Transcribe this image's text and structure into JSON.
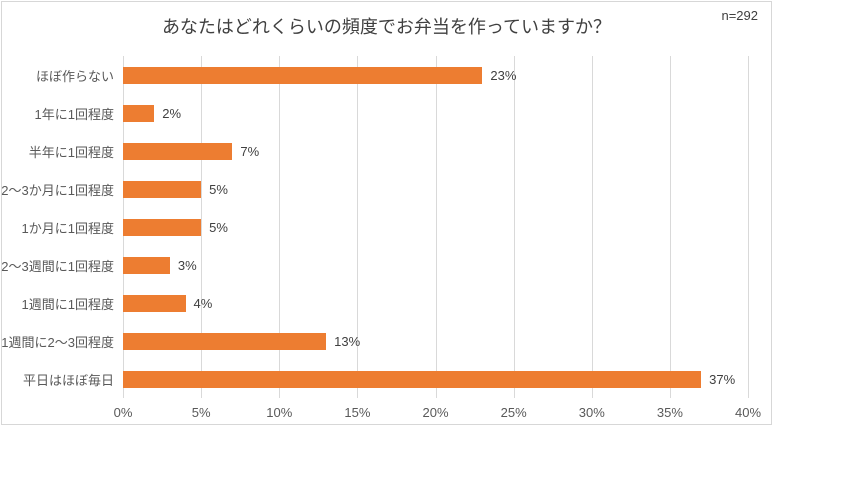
{
  "chart_data": {
    "type": "bar",
    "orientation": "horizontal",
    "title": "あなたはどれくらいの頻度でお弁当を作っていますか？",
    "sample_size": "n=292",
    "categories": [
      "ほぼ作らない",
      "1年に1回程度",
      "半年に1回程度",
      "2～3か月に1回程度",
      "1か月に1回程度",
      "2～3週間に1回程度",
      "1週間に1回程度",
      "1週間に2～3回程度",
      "平日はほぼ毎日"
    ],
    "values": [
      23,
      2,
      7,
      5,
      5,
      3,
      4,
      13,
      37
    ],
    "data_labels": [
      "23%",
      "2%",
      "7%",
      "5%",
      "5%",
      "3%",
      "4%",
      "13%",
      "37%"
    ],
    "x_ticks": [
      "0%",
      "5%",
      "10%",
      "15%",
      "20%",
      "25%",
      "30%",
      "35%",
      "40%"
    ],
    "xlim": [
      0,
      40
    ],
    "grid": "vertical",
    "legend": "none",
    "colors": {
      "bar": "#ED7D31",
      "gridline": "#D9D9D9",
      "border": "#D7D7D7",
      "title_text": "#404040",
      "axis_text": "#595959",
      "data_label_text": "#404040"
    }
  }
}
